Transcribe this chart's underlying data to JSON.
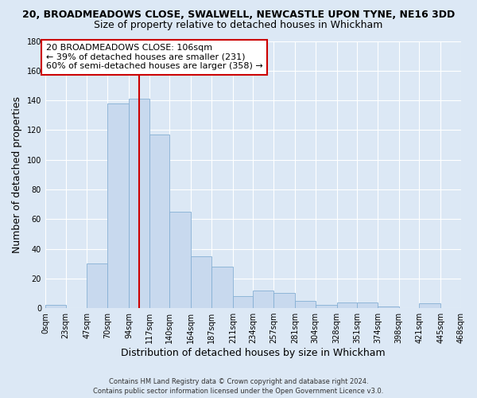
{
  "title_line1": "20, BROADMEADOWS CLOSE, SWALWELL, NEWCASTLE UPON TYNE, NE16 3DD",
  "title_line2": "Size of property relative to detached houses in Whickham",
  "xlabel": "Distribution of detached houses by size in Whickham",
  "ylabel": "Number of detached properties",
  "bin_edges": [
    0,
    23,
    47,
    70,
    94,
    117,
    140,
    164,
    187,
    211,
    234,
    257,
    281,
    304,
    328,
    351,
    374,
    398,
    421,
    445,
    468
  ],
  "bar_heights": [
    2,
    0,
    30,
    138,
    141,
    117,
    65,
    35,
    28,
    8,
    12,
    10,
    5,
    2,
    4,
    4,
    1,
    0,
    3,
    0
  ],
  "bar_color": "#c8d9ee",
  "bar_edgecolor": "#85afd4",
  "tick_labels": [
    "0sqm",
    "23sqm",
    "47sqm",
    "70sqm",
    "94sqm",
    "117sqm",
    "140sqm",
    "164sqm",
    "187sqm",
    "211sqm",
    "234sqm",
    "257sqm",
    "281sqm",
    "304sqm",
    "328sqm",
    "351sqm",
    "374sqm",
    "398sqm",
    "421sqm",
    "445sqm",
    "468sqm"
  ],
  "ylim": [
    0,
    180
  ],
  "yticks": [
    0,
    20,
    40,
    60,
    80,
    100,
    120,
    140,
    160,
    180
  ],
  "vline_x": 106,
  "vline_color": "#cc0000",
  "annotation_text": "20 BROADMEADOWS CLOSE: 106sqm\n← 39% of detached houses are smaller (231)\n60% of semi-detached houses are larger (358) →",
  "annotation_box_color": "#ffffff",
  "annotation_box_edgecolor": "#cc0000",
  "footer_line1": "Contains HM Land Registry data © Crown copyright and database right 2024.",
  "footer_line2": "Contains public sector information licensed under the Open Government Licence v3.0.",
  "background_color": "#dce8f5",
  "plot_background": "#dce8f5",
  "grid_color": "#ffffff",
  "title_fontsize": 9,
  "subtitle_fontsize": 9,
  "axis_label_fontsize": 9,
  "tick_fontsize": 7,
  "annotation_fontsize": 8,
  "footer_fontsize": 6
}
